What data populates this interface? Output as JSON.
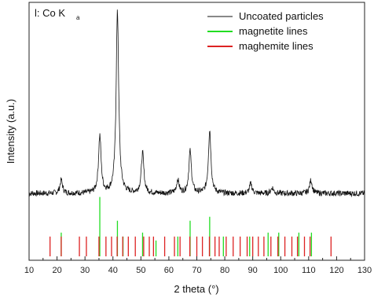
{
  "chart_data": {
    "type": "line",
    "xlabel": "2 theta (°)",
    "ylabel": "Intensity (a.u.)",
    "xlim": [
      10,
      130
    ],
    "xticks": [
      10,
      20,
      30,
      40,
      50,
      60,
      70,
      80,
      90,
      100,
      110,
      120,
      130
    ],
    "ylim": [
      -0.35,
      1.0
    ],
    "grid": false,
    "legend_position": "top-right",
    "annotation": {
      "main": "l: Co K",
      "sub": "a"
    },
    "series": [
      {
        "name": "Uncoated particles",
        "color": "#111111",
        "style": "line",
        "baseline": 0.0,
        "peaks": [
          {
            "x": 21.5,
            "y": 0.07
          },
          {
            "x": 35.3,
            "y": 0.3
          },
          {
            "x": 41.6,
            "y": 0.95
          },
          {
            "x": 50.6,
            "y": 0.21
          },
          {
            "x": 63.2,
            "y": 0.07
          },
          {
            "x": 67.6,
            "y": 0.22
          },
          {
            "x": 74.6,
            "y": 0.33
          },
          {
            "x": 89.3,
            "y": 0.05
          },
          {
            "x": 97.0,
            "y": 0.03
          },
          {
            "x": 110.8,
            "y": 0.07
          }
        ]
      },
      {
        "name": "magnetite lines",
        "color": "#22dd22",
        "style": "sticks",
        "x": [
          21.5,
          35.3,
          41.6,
          43.6,
          50.6,
          55.4,
          63.2,
          67.6,
          74.6,
          79.5,
          88.9,
          95.5,
          99.3,
          106.5,
          111.0
        ],
        "values": [
          0.12,
          0.3,
          0.18,
          0.1,
          0.12,
          0.08,
          0.1,
          0.18,
          0.2,
          0.1,
          0.1,
          0.12,
          0.12,
          0.12,
          0.12
        ]
      },
      {
        "name": "maghemite lines",
        "color": "#dd2222",
        "style": "sticks",
        "x": [
          17.5,
          21.5,
          28.0,
          30.5,
          35.0,
          37.5,
          39.5,
          41.5,
          43.5,
          45.5,
          48.0,
          51.0,
          53.0,
          54.5,
          58.5,
          62.0,
          64.0,
          67.5,
          70.0,
          72.0,
          74.5,
          76.5,
          78.0,
          80.5,
          83.0,
          85.5,
          88.0,
          90.0,
          92.0,
          94.0,
          96.5,
          99.0,
          101.5,
          104.0,
          106.0,
          108.5,
          110.5,
          118.0
        ],
        "values": [
          0.1,
          0.1,
          0.1,
          0.1,
          0.1,
          0.1,
          0.1,
          0.1,
          0.1,
          0.1,
          0.1,
          0.1,
          0.1,
          0.1,
          0.1,
          0.1,
          0.1,
          0.1,
          0.1,
          0.1,
          0.1,
          0.1,
          0.1,
          0.1,
          0.1,
          0.1,
          0.1,
          0.1,
          0.1,
          0.1,
          0.1,
          0.1,
          0.1,
          0.1,
          0.1,
          0.1,
          0.1,
          0.1
        ]
      }
    ]
  }
}
